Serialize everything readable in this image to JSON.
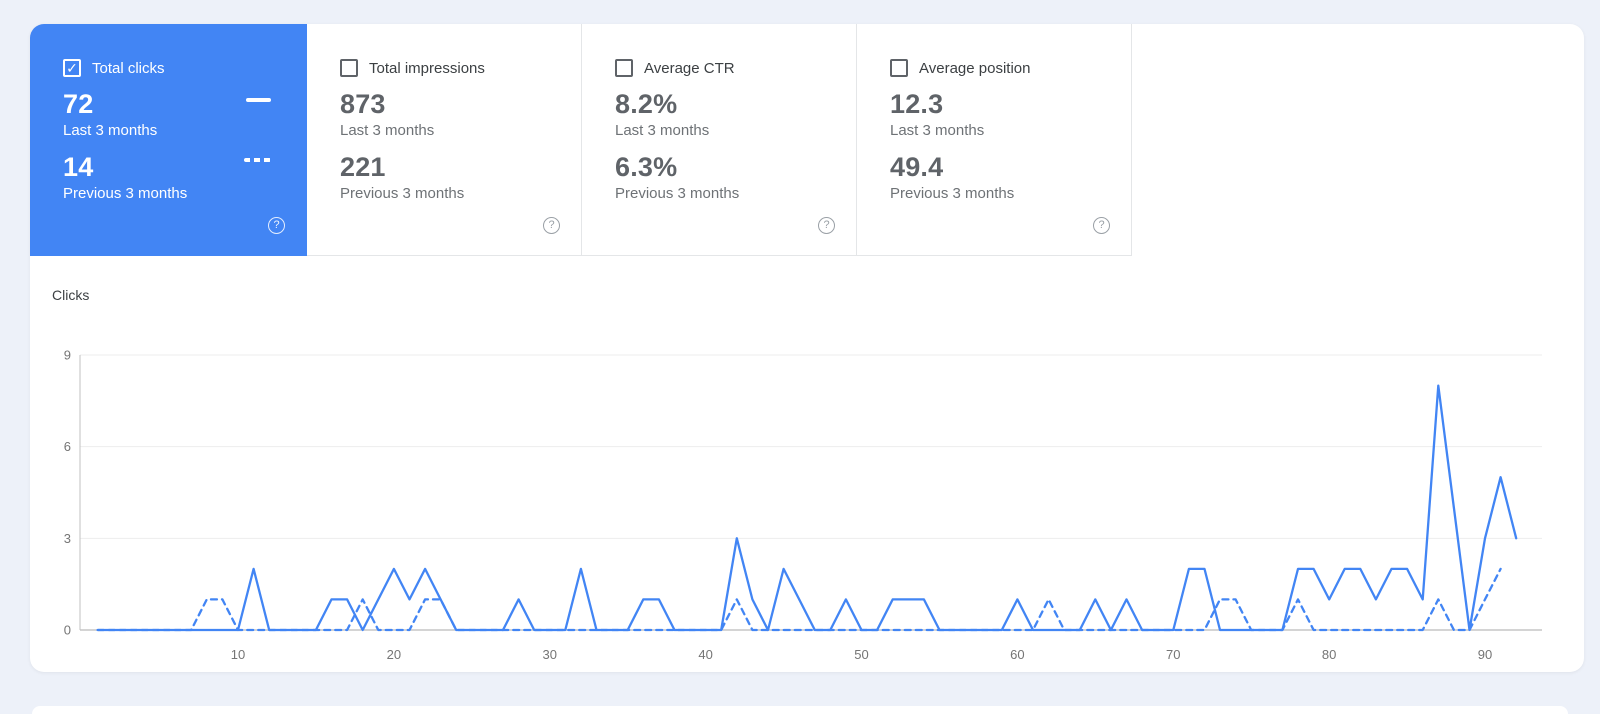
{
  "icons": {
    "check": "✓",
    "help": "?"
  },
  "colors": {
    "accent": "#4285f4",
    "selected_card_bg": "#4285f4",
    "card_value_text": "#5f6368",
    "page_bg": "#edf1f9"
  },
  "cards": [
    {
      "title": "Total clicks",
      "checked": true,
      "value_current": "72",
      "label_current": "Last 3 months",
      "value_previous": "14",
      "label_previous": "Previous 3 months"
    },
    {
      "title": "Total impressions",
      "checked": false,
      "value_current": "873",
      "label_current": "Last 3 months",
      "value_previous": "221",
      "label_previous": "Previous 3 months"
    },
    {
      "title": "Average CTR",
      "checked": false,
      "value_current": "8.2%",
      "label_current": "Last 3 months",
      "value_previous": "6.3%",
      "label_previous": "Previous 3 months"
    },
    {
      "title": "Average position",
      "checked": false,
      "value_current": "12.3",
      "label_current": "Last 3 months",
      "value_previous": "49.4",
      "label_previous": "Previous 3 months"
    }
  ],
  "chart_data": {
    "type": "line",
    "title": "Clicks",
    "xlabel": "",
    "ylabel": "Clicks",
    "x_description": "day index within the 3-month period (1-92)",
    "xlim": [
      1,
      92
    ],
    "ylim": [
      0,
      9
    ],
    "xticks": [
      10,
      20,
      30,
      40,
      50,
      60,
      70,
      80,
      90
    ],
    "yticks": [
      0,
      3,
      6,
      9
    ],
    "grid": "horizontal",
    "legend_position": "none",
    "series": [
      {
        "name": "Total clicks — Last 3 months",
        "style": "solid",
        "color": "#4285f4",
        "values": [
          0,
          0,
          0,
          0,
          0,
          0,
          0,
          0,
          0,
          0,
          2,
          0,
          0,
          0,
          0,
          1,
          1,
          0,
          1,
          2,
          1,
          2,
          1,
          0,
          0,
          0,
          0,
          1,
          0,
          0,
          0,
          2,
          0,
          0,
          0,
          1,
          1,
          0,
          0,
          0,
          0,
          3,
          1,
          0,
          2,
          1,
          0,
          0,
          1,
          0,
          0,
          1,
          1,
          1,
          0,
          0,
          0,
          0,
          0,
          1,
          0,
          0,
          0,
          0,
          1,
          0,
          1,
          0,
          0,
          0,
          2,
          2,
          0,
          0,
          0,
          0,
          0,
          2,
          2,
          1,
          2,
          2,
          1,
          2,
          2,
          1,
          8,
          4,
          0,
          3,
          5,
          3
        ]
      },
      {
        "name": "Total clicks — Previous 3 months",
        "style": "dashed",
        "color": "#4285f4",
        "values": [
          0,
          0,
          0,
          0,
          0,
          0,
          0,
          1,
          1,
          0,
          0,
          0,
          0,
          0,
          0,
          0,
          0,
          1,
          0,
          0,
          0,
          1,
          1,
          0,
          0,
          0,
          0,
          0,
          0,
          0,
          0,
          0,
          0,
          0,
          0,
          0,
          0,
          0,
          0,
          0,
          0,
          1,
          0,
          0,
          0,
          0,
          0,
          0,
          0,
          0,
          0,
          0,
          0,
          0,
          0,
          0,
          0,
          0,
          0,
          0,
          0,
          1,
          0,
          0,
          0,
          0,
          0,
          0,
          0,
          0,
          0,
          0,
          1,
          1,
          0,
          0,
          0,
          1,
          0,
          0,
          0,
          0,
          0,
          0,
          0,
          0,
          1,
          0,
          0,
          1,
          2
        ]
      }
    ]
  }
}
